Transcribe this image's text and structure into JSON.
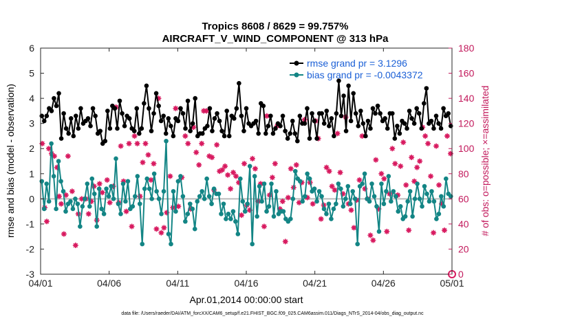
{
  "chart_data": {
    "type": "line",
    "title": "Tropics 8608 / 8629 = 99.757%",
    "subtitle": "AIRCRAFT_V_WIND_COMPONENT @ 313 hPa",
    "xlabel": "Apr.01,2014 00:00:00 start",
    "ylabel_left": "rmse and bias (model - observation)",
    "ylabel_right": "# of obs: o=possible; ×=assimilated",
    "footer": "data file: /Users/raeder/DAI/ATM_forcXX/CAM6_setup/f.e21.FHIST_BGC.f09_025.CAM6assim.011/Diags_NTrS_2014-04/obs_diag_output.nc",
    "xlim": [
      0,
      30
    ],
    "ylim_left": [
      -3,
      6
    ],
    "ylim_right": [
      0,
      180
    ],
    "x_ticks": [
      "04/01",
      "04/06",
      "04/11",
      "04/16",
      "04/21",
      "04/26",
      "05/01"
    ],
    "y_ticks_left": [
      "-3",
      "-2",
      "-1",
      "0",
      "1",
      "2",
      "3",
      "4",
      "5",
      "6"
    ],
    "y_ticks_right": [
      "0",
      "20",
      "40",
      "60",
      "80",
      "100",
      "120",
      "140",
      "160",
      "180"
    ],
    "legend": {
      "rmse": "rmse grand pr = 3.1296",
      "bias": "bias grand pr = -0.0043372"
    },
    "colors": {
      "rmse": "#000000",
      "bias": "#138585",
      "obs": "#d81b60",
      "zero_line": "#bbbbbb"
    },
    "series": [
      {
        "name": "rmse",
        "values": [
          3.3,
          3.1,
          3.3,
          3.6,
          3.5,
          4.0,
          3.7,
          4.2,
          2.4,
          3.4,
          2.8,
          2.6,
          3.2,
          2.5,
          3.3,
          2.8,
          3.6,
          3.0,
          3.1,
          3.2,
          2.9,
          3.6,
          3.3,
          2.6,
          2.7,
          2.2,
          2.3,
          3.5,
          2.8,
          3.7,
          3.6,
          2.8,
          3.9,
          3.4,
          2.9,
          3.3,
          3.2,
          2.8,
          2.7,
          3.6,
          2.6,
          2.8,
          3.8,
          4.5,
          3.6,
          2.7,
          3.4,
          4.2,
          3.7,
          3.1,
          3.3,
          2.6,
          3.2,
          2.9,
          2.5,
          3.2,
          3.1,
          3.6,
          3.4,
          2.8,
          3.9,
          2.7,
          3.0,
          4.0,
          2.5,
          2.6,
          2.6,
          2.8,
          2.9,
          3.6,
          2.7,
          3.2,
          3.4,
          3.1,
          2.7,
          2.5,
          3.5,
          2.5,
          3.3,
          3.2,
          3.6,
          4.6,
          3.3,
          2.7,
          3.6,
          3.0,
          2.9,
          3.0,
          3.1,
          2.6,
          3.8,
          3.7,
          2.6,
          2.9,
          3.3,
          2.6,
          2.8,
          3.0,
          2.9,
          3.3,
          2.7,
          2.4,
          2.6,
          3.1,
          2.6,
          2.3,
          3.3,
          3.0,
          3.0,
          3.6,
          2.4,
          3.4,
          3.1,
          2.4,
          3.4,
          3.4,
          3.0,
          3.5,
          2.9,
          3.2,
          2.5,
          3.4,
          4.7,
          3.3,
          4.1,
          2.7,
          4.5,
          3.1,
          4.2,
          3.4,
          2.9,
          3.5,
          3.0,
          2.5,
          3.1,
          2.8,
          3.6,
          3.4,
          3.7,
          3.4,
          3.1,
          3.2,
          2.8,
          3.4,
          3.4,
          2.4,
          2.9,
          2.6,
          3.1,
          3.0,
          2.8,
          3.5,
          3.2,
          3.0,
          3.6,
          3.4,
          2.8,
          3.8,
          4.4,
          3.0,
          3.1,
          2.8,
          3.3,
          3.0,
          2.8,
          3.6,
          3.3,
          3.4,
          2.9
        ]
      },
      {
        "name": "bias",
        "values": [
          0.7,
          -0.4,
          0.6,
          -0.1,
          2.2,
          0.9,
          -0.4,
          1.5,
          0.7,
          0.3,
          -0.5,
          -0.2,
          -0.1,
          -0.4,
          0.0,
          -0.2,
          -1.1,
          -0.3,
          0.0,
          0.6,
          -0.3,
          0.8,
          0.2,
          -1.1,
          0.4,
          -0.4,
          -0.6,
          0.4,
          0.1,
          0.5,
          0.0,
          1.6,
          -0.2,
          -0.6,
          0.6,
          -0.1,
          0.7,
          -0.4,
          -0.3,
          0.1,
          0.9,
          -0.2,
          -1.8,
          0.4,
          0.8,
          0.4,
          0.0,
          1.0,
          0.3,
          0.0,
          -0.6,
          0.3,
          2.3,
          -1.4,
          -1.8,
          0.3,
          -0.5,
          0.7,
          0.9,
          0.1,
          -0.9,
          -0.6,
          -0.2,
          -0.4,
          -1.2,
          -0.1,
          0.1,
          0.3,
          0.0,
          0.8,
          0.1,
          -0.2,
          0.4,
          0.2,
          0.2,
          -0.6,
          -0.2,
          -0.8,
          -0.6,
          -0.8,
          -0.5,
          -0.9,
          -1.4,
          0.8,
          -0.1,
          -0.5,
          -0.2,
          1.3,
          -1.8,
          0.9,
          -0.7,
          0.5,
          -0.1,
          0.6,
          -0.5,
          -0.3,
          0.6,
          -0.7,
          0.3,
          -0.6,
          -0.5,
          -0.5,
          -0.8,
          -0.9,
          -0.8,
          0.0,
          1.1,
          0.8,
          0.7,
          -0.1,
          0.1,
          1.0,
          0.8,
          0.3,
          0.4,
          -0.1,
          0.3,
          0.1,
          -0.4,
          -0.6,
          -0.2,
          -0.8,
          -0.4,
          -0.2,
          0.6,
          0.4,
          -0.3,
          0.0,
          0.5,
          -0.2,
          0.3,
          0.0,
          -1.8,
          0.5,
          0.6,
          1.0,
          0.0,
          -0.1,
          0.6,
          0.1,
          -0.3,
          -1.3,
          0.6,
          -0.2,
          0.3,
          0.9,
          -0.1,
          0.3,
          0.1,
          -0.5,
          -0.3,
          -0.8,
          -0.7,
          -0.1,
          0.3,
          -0.7,
          0.0,
          0.6,
          0.0,
          -0.3,
          0.5,
          0.2,
          -0.1,
          0.3,
          -0.1,
          -0.8,
          -0.6,
          0.1,
          -0.3,
          0.8,
          0.2,
          0.1
        ]
      },
      {
        "name": "obs_possible",
        "points": [
          [
            0.12,
            104
          ],
          [
            0.3,
            53
          ],
          [
            0.45,
            42
          ],
          [
            0.6,
            100
          ],
          [
            0.8,
            96
          ],
          [
            1.0,
            94
          ],
          [
            1.2,
            85
          ],
          [
            1.35,
            62
          ],
          [
            1.5,
            56
          ],
          [
            1.7,
            32
          ],
          [
            1.85,
            63
          ],
          [
            2.0,
            94
          ],
          [
            2.3,
            66
          ],
          [
            2.55,
            23
          ],
          [
            2.75,
            48
          ],
          [
            3.0,
            60
          ],
          [
            3.3,
            60
          ],
          [
            3.5,
            48
          ],
          [
            3.7,
            58
          ],
          [
            3.9,
            70
          ],
          [
            4.1,
            43
          ],
          [
            4.3,
            72
          ],
          [
            4.5,
            65
          ],
          [
            4.85,
            75
          ],
          [
            5.05,
            57
          ],
          [
            5.3,
            70
          ],
          [
            5.5,
            133
          ],
          [
            5.7,
            57
          ],
          [
            5.85,
            102
          ],
          [
            6.05,
            74
          ],
          [
            6.25,
            50
          ],
          [
            6.45,
            104
          ],
          [
            6.65,
            38
          ],
          [
            6.85,
            110
          ],
          [
            7.05,
            104
          ],
          [
            7.25,
            62
          ],
          [
            7.45,
            89
          ],
          [
            7.65,
            104
          ],
          [
            7.85,
            95
          ],
          [
            8.05,
            75
          ],
          [
            8.25,
            88
          ],
          [
            8.45,
            36
          ],
          [
            8.6,
            140
          ],
          [
            8.8,
            33
          ],
          [
            9.0,
            37
          ],
          [
            9.2,
            49
          ],
          [
            9.45,
            78
          ],
          [
            9.65,
            53
          ],
          [
            9.85,
            132
          ],
          [
            10.05,
            54
          ],
          [
            10.3,
            77
          ],
          [
            10.55,
            110
          ],
          [
            10.75,
            104
          ],
          [
            10.95,
            52
          ],
          [
            11.15,
            117
          ],
          [
            11.35,
            97
          ],
          [
            11.55,
            87
          ],
          [
            11.75,
            104
          ],
          [
            11.9,
            130
          ],
          [
            12.1,
            130
          ],
          [
            12.3,
            94
          ],
          [
            12.5,
            93
          ],
          [
            12.65,
            67
          ],
          [
            12.85,
            103
          ],
          [
            13.05,
            82
          ],
          [
            13.25,
            83
          ],
          [
            13.45,
            86
          ],
          [
            13.65,
            79
          ],
          [
            13.85,
            68
          ],
          [
            14.05,
            81
          ],
          [
            14.25,
            78
          ],
          [
            14.45,
            73
          ],
          [
            14.65,
            47
          ],
          [
            14.85,
            88
          ],
          [
            15.05,
            55
          ],
          [
            15.25,
            51
          ],
          [
            15.45,
            92
          ],
          [
            15.65,
            84
          ],
          [
            15.85,
            58
          ],
          [
            16.05,
            72
          ],
          [
            16.3,
            38
          ],
          [
            16.5,
            126
          ],
          [
            16.7,
            63
          ],
          [
            16.9,
            77
          ],
          [
            17.1,
            88
          ],
          [
            17.25,
            118
          ],
          [
            17.45,
            52
          ],
          [
            17.65,
            58
          ],
          [
            17.85,
            26
          ],
          [
            18.05,
            61
          ],
          [
            18.25,
            84
          ],
          [
            18.45,
            69
          ],
          [
            18.65,
            87
          ],
          [
            18.85,
            57
          ],
          [
            19.05,
            73
          ],
          [
            19.25,
            123
          ],
          [
            19.45,
            61
          ],
          [
            19.65,
            73
          ],
          [
            19.85,
            56
          ],
          [
            20.05,
            122
          ],
          [
            20.25,
            108
          ],
          [
            20.45,
            44
          ],
          [
            20.65,
            55
          ],
          [
            20.85,
            85
          ],
          [
            21.05,
            82
          ],
          [
            21.25,
            70
          ],
          [
            21.45,
            67
          ],
          [
            21.65,
            112
          ],
          [
            21.85,
            81
          ],
          [
            22.05,
            64
          ],
          [
            22.25,
            125
          ],
          [
            22.45,
            56
          ],
          [
            22.65,
            51
          ],
          [
            22.85,
            37
          ],
          [
            23.05,
            59
          ],
          [
            23.25,
            75
          ],
          [
            23.45,
            110
          ],
          [
            23.65,
            68
          ],
          [
            23.85,
            60
          ],
          [
            24.05,
            31
          ],
          [
            24.25,
            27
          ],
          [
            24.45,
            91
          ],
          [
            24.65,
            52
          ],
          [
            24.85,
            80
          ],
          [
            25.05,
            76
          ],
          [
            25.25,
            34
          ],
          [
            25.45,
            64
          ],
          [
            25.65,
            100
          ],
          [
            25.85,
            88
          ],
          [
            26.05,
            63
          ],
          [
            26.25,
            86
          ],
          [
            26.45,
            105
          ],
          [
            26.65,
            71
          ],
          [
            26.85,
            35
          ],
          [
            27.05,
            93
          ],
          [
            27.25,
            74
          ],
          [
            27.45,
            85
          ],
          [
            27.65,
            90
          ],
          [
            27.85,
            117
          ],
          [
            28.05,
            110
          ],
          [
            28.25,
            104
          ],
          [
            28.45,
            78
          ],
          [
            28.65,
            33
          ],
          [
            28.85,
            102
          ],
          [
            29.05,
            71
          ],
          [
            29.25,
            56
          ],
          [
            29.45,
            35
          ],
          [
            29.65,
            110
          ],
          [
            29.9,
            96
          ]
        ]
      }
    ]
  }
}
